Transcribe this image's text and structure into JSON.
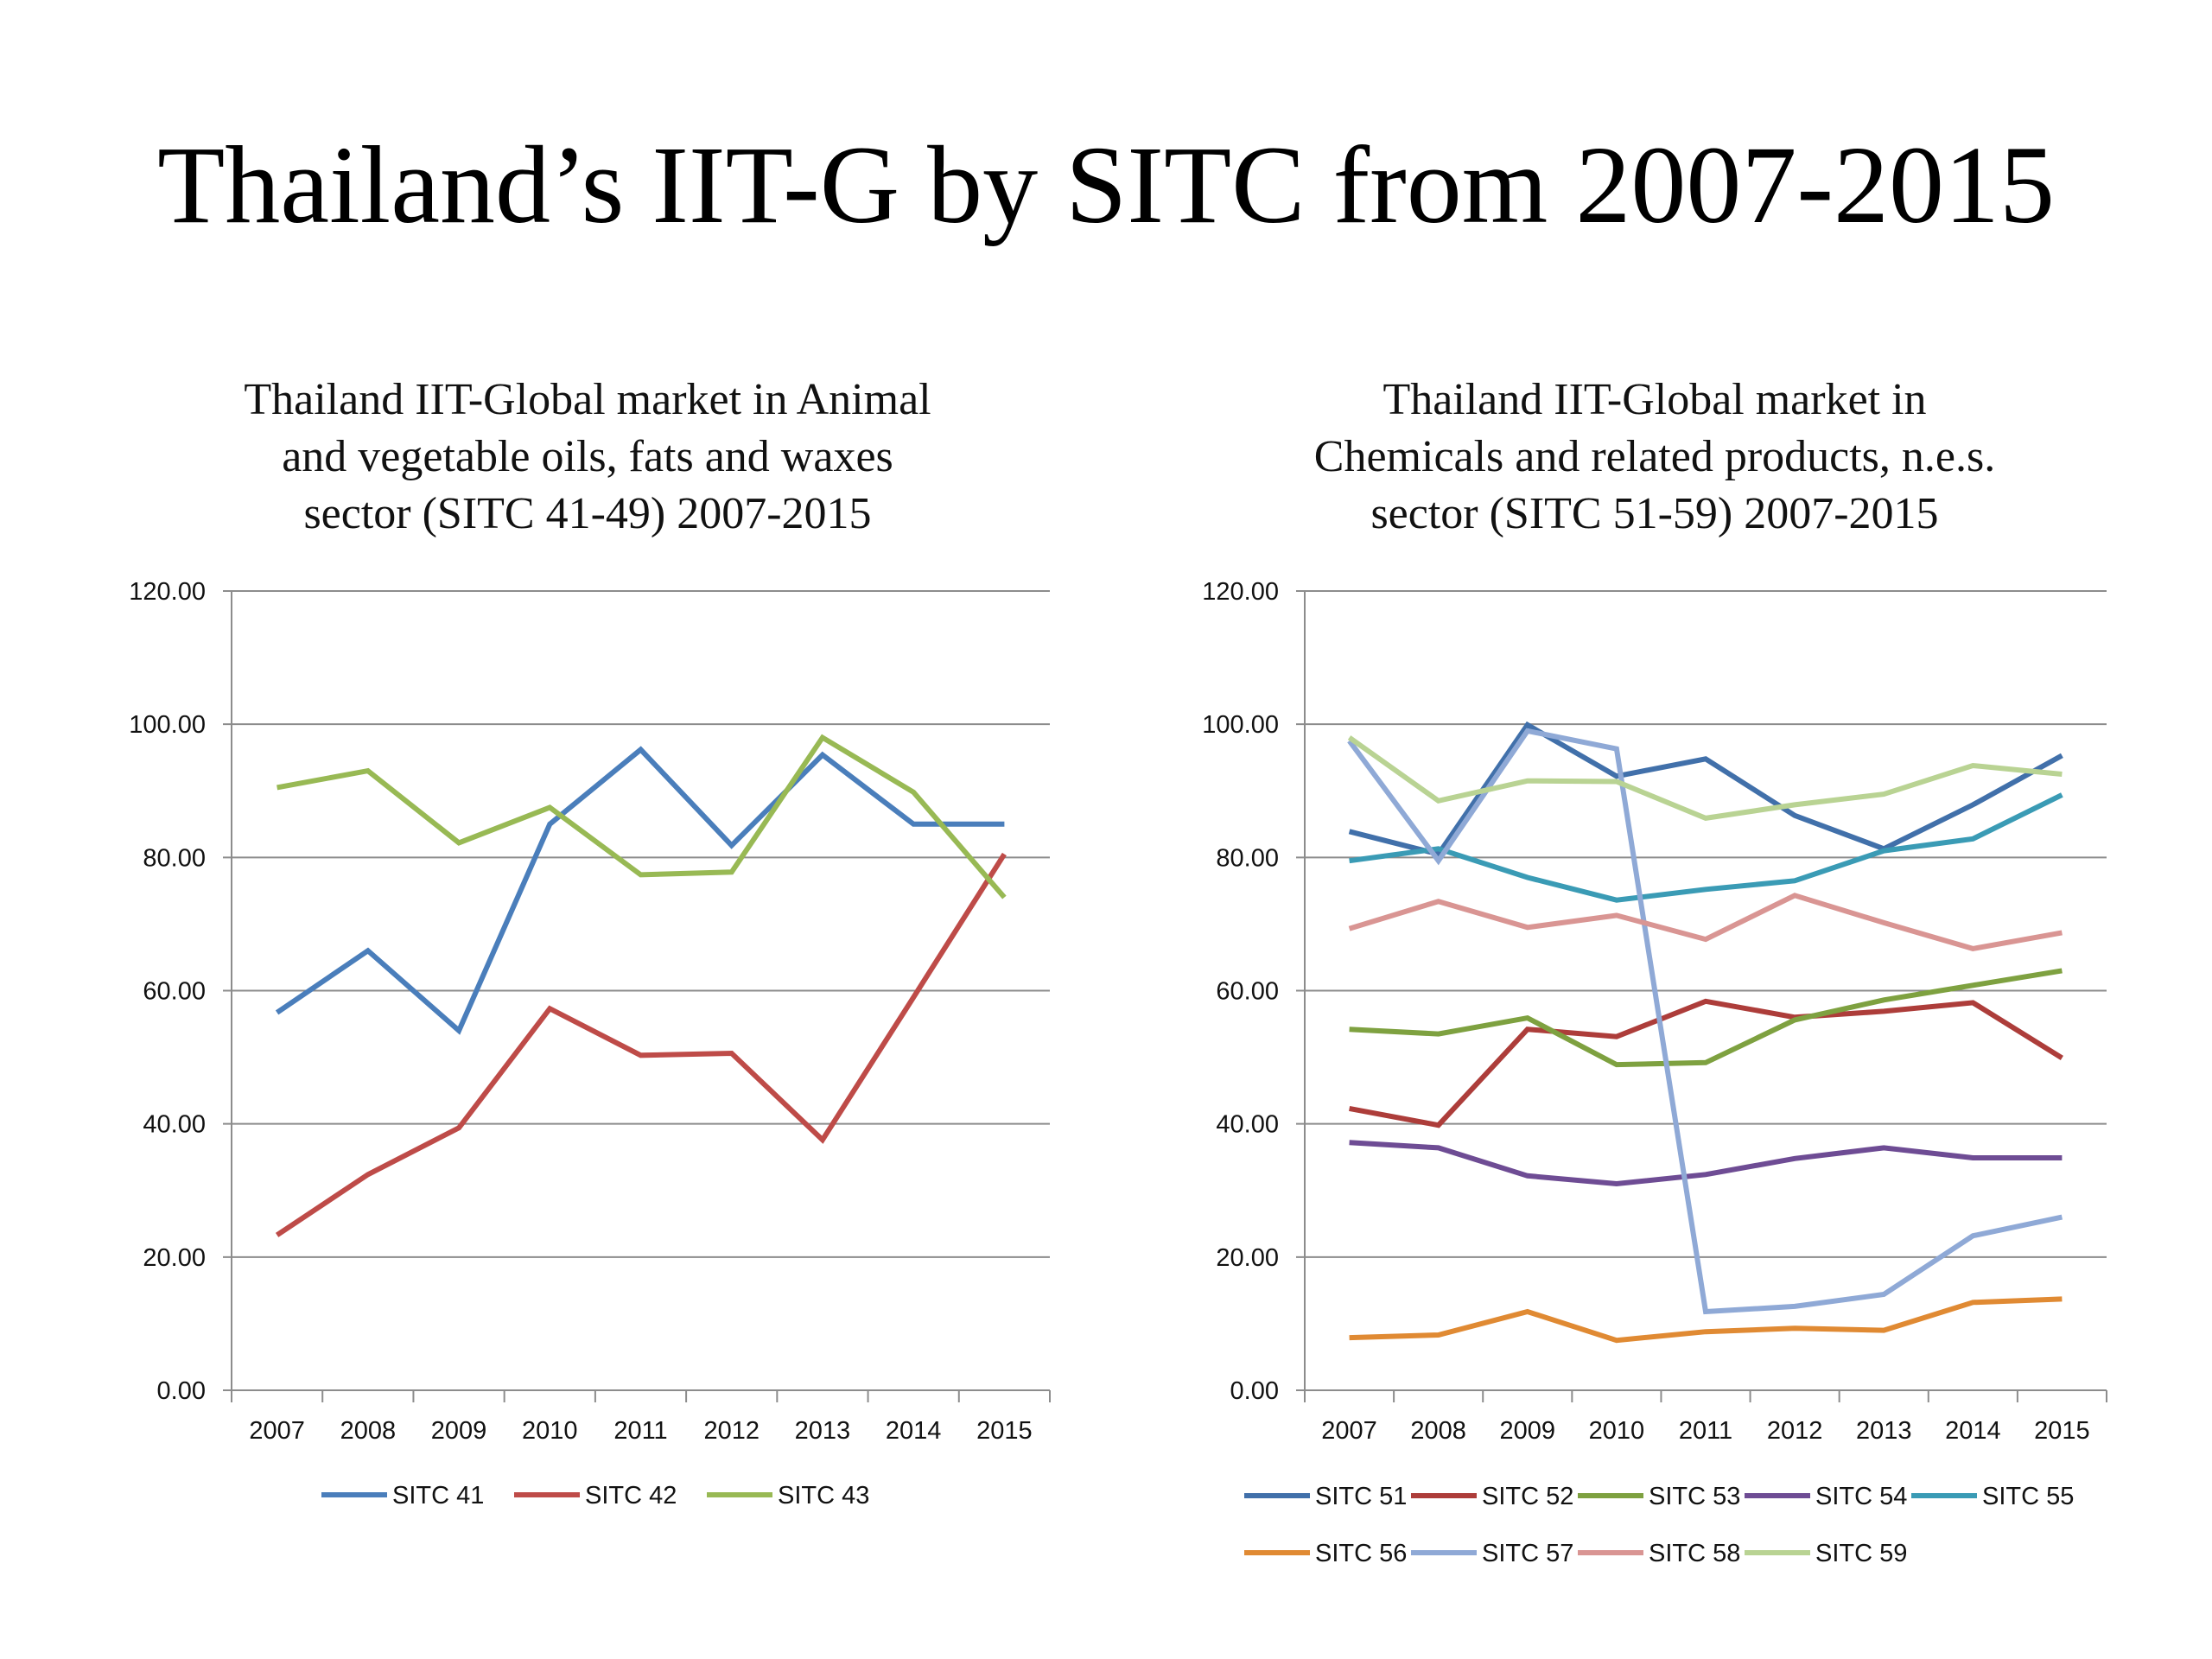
{
  "page": {
    "title": "Thailand’s IIT-G by SITC from 2007-2015"
  },
  "chart_data": [
    {
      "type": "line",
      "title_lines": [
        "Thailand IIT-Global market in Animal",
        "and vegetable oils, fats and waxes",
        "sector (SITC 41-49) 2007-2015"
      ],
      "xlabel": "",
      "ylabel": "",
      "categories": [
        "2007",
        "2008",
        "2009",
        "2010",
        "2011",
        "2012",
        "2013",
        "2014",
        "2015"
      ],
      "yticks": [
        "0.00",
        "20.00",
        "40.00",
        "60.00",
        "80.00",
        "100.00",
        "120.00"
      ],
      "ylim": [
        0,
        120
      ],
      "grid": true,
      "legend_position": "bottom",
      "series": [
        {
          "name": "SITC 41",
          "color": "#4a7ebb",
          "values": [
            56.7,
            66.0,
            54.0,
            85.0,
            96.2,
            81.8,
            95.4,
            85.0,
            85.0
          ]
        },
        {
          "name": "SITC 42",
          "color": "#be4b48",
          "values": [
            23.3,
            32.4,
            39.4,
            57.3,
            50.3,
            50.6,
            37.6,
            59.0,
            80.5
          ]
        },
        {
          "name": "SITC 43",
          "color": "#98b954",
          "values": [
            90.5,
            93.0,
            82.2,
            87.5,
            77.4,
            77.8,
            98.0,
            89.8,
            74.0
          ]
        }
      ]
    },
    {
      "type": "line",
      "title_lines": [
        "Thailand IIT-Global market in",
        "Chemicals and related products, n.e.s.",
        "sector (SITC 51-59) 2007-2015"
      ],
      "xlabel": "",
      "ylabel": "",
      "categories": [
        "2007",
        "2008",
        "2009",
        "2010",
        "2011",
        "2012",
        "2013",
        "2014",
        "2015"
      ],
      "yticks": [
        "0.00",
        "20.00",
        "40.00",
        "60.00",
        "80.00",
        "100.00",
        "120.00"
      ],
      "ylim": [
        0,
        120
      ],
      "grid": true,
      "legend_position": "bottom",
      "series": [
        {
          "name": "SITC 51",
          "color": "#4170aa",
          "values": [
            83.9,
            80.5,
            99.9,
            92.2,
            94.8,
            86.3,
            81.3,
            87.9,
            95.3
          ]
        },
        {
          "name": "SITC 52",
          "color": "#ad3d3a",
          "values": [
            42.3,
            39.8,
            54.2,
            53.1,
            58.4,
            56.0,
            56.9,
            58.2,
            49.9
          ]
        },
        {
          "name": "SITC 53",
          "color": "#7ea140",
          "values": [
            54.2,
            53.5,
            55.9,
            48.9,
            49.2,
            55.6,
            58.6,
            60.8,
            63.0
          ]
        },
        {
          "name": "SITC 54",
          "color": "#6e4c94",
          "values": [
            37.2,
            36.4,
            32.2,
            31.0,
            32.4,
            34.8,
            36.4,
            34.9,
            34.9
          ]
        },
        {
          "name": "SITC 55",
          "color": "#3a9bb5",
          "values": [
            79.5,
            81.3,
            77.0,
            73.6,
            75.2,
            76.5,
            81.0,
            82.8,
            89.4
          ]
        },
        {
          "name": "SITC 56",
          "color": "#e08a33",
          "values": [
            7.9,
            8.3,
            11.8,
            7.5,
            8.8,
            9.3,
            9.0,
            13.2,
            13.7
          ]
        },
        {
          "name": "SITC 57",
          "color": "#8fa9d6",
          "values": [
            97.5,
            79.5,
            99.0,
            96.3,
            11.8,
            12.6,
            14.4,
            23.2,
            26.0
          ]
        },
        {
          "name": "SITC 58",
          "color": "#d99593",
          "values": [
            69.3,
            73.4,
            69.5,
            71.3,
            67.7,
            74.3,
            70.2,
            66.3,
            68.7
          ]
        },
        {
          "name": "SITC 59",
          "color": "#b9d393",
          "values": [
            98.0,
            88.5,
            91.5,
            91.4,
            85.9,
            87.9,
            89.5,
            93.8,
            92.5
          ]
        }
      ]
    }
  ]
}
